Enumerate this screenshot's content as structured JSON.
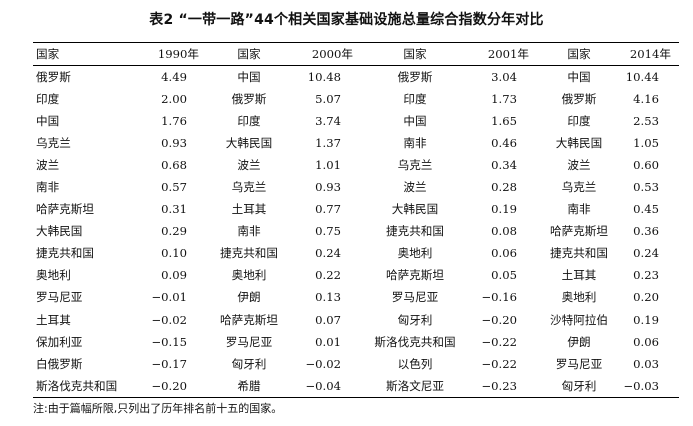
{
  "title": "表2 “一带一路”44个相关国家基础设施总量综合指数分年对比",
  "headers": [
    "国家",
    "1990年",
    "国家",
    "2000年",
    "国家",
    "2001年",
    "国家",
    "2014年"
  ],
  "rows": [
    [
      "俄罗斯",
      "4.49",
      "中国",
      "10.48",
      "俄罗斯",
      "3.04",
      "中国",
      "10.44"
    ],
    [
      "印度",
      "2.00",
      "俄罗斯",
      "5.07",
      "印度",
      "1.73",
      "俄罗斯",
      "4.16"
    ],
    [
      "中国",
      "1.76",
      "印度",
      "3.74",
      "中国",
      "1.65",
      "印度",
      "2.53"
    ],
    [
      "乌克兰",
      "0.93",
      "大韩民国",
      "1.37",
      "南非",
      "0.46",
      "大韩民国",
      "1.05"
    ],
    [
      "波兰",
      "0.68",
      "波兰",
      "1.01",
      "乌克兰",
      "0.34",
      "波兰",
      "0.60"
    ],
    [
      "南非",
      "0.57",
      "乌克兰",
      "0.93",
      "波兰",
      "0.28",
      "乌克兰",
      "0.53"
    ],
    [
      "哈萨克斯坦",
      "0.31",
      "土耳其",
      "0.77",
      "大韩民国",
      "0.19",
      "南非",
      "0.45"
    ],
    [
      "大韩民国",
      "0.29",
      "南非",
      "0.75",
      "捷克共和国",
      "0.08",
      "哈萨克斯坦",
      "0.36"
    ],
    [
      "捷克共和国",
      "0.10",
      "捷克共和国",
      "0.24",
      "奥地利",
      "0.06",
      "捷克共和国",
      "0.24"
    ],
    [
      "奥地利",
      "0.09",
      "奥地利",
      "0.22",
      "哈萨克斯坦",
      "0.05",
      "土耳其",
      "0.23"
    ],
    [
      "罗马尼亚",
      "−0.01",
      "伊朗",
      "0.13",
      "罗马尼亚",
      "−0.16",
      "奥地利",
      "0.20"
    ],
    [
      "土耳其",
      "−0.02",
      "哈萨克斯坦",
      "0.07",
      "匈牙利",
      "−0.20",
      "沙特阿拉伯",
      "0.19"
    ],
    [
      "保加利亚",
      "−0.15",
      "罗马尼亚",
      "0.01",
      "斯洛伐克共和国",
      "−0.22",
      "伊朗",
      "0.06"
    ],
    [
      "白俄罗斯",
      "−0.17",
      "匈牙利",
      "−0.02",
      "以色列",
      "−0.22",
      "罗马尼亚",
      "0.03"
    ],
    [
      "斯洛伐克共和国",
      "−0.20",
      "希腊",
      "−0.04",
      "斯洛文尼亚",
      "−0.23",
      "匈牙利",
      "−0.03"
    ]
  ],
  "note": "注:由于篇幅所限,只列出了历年排名前十五的国家。"
}
